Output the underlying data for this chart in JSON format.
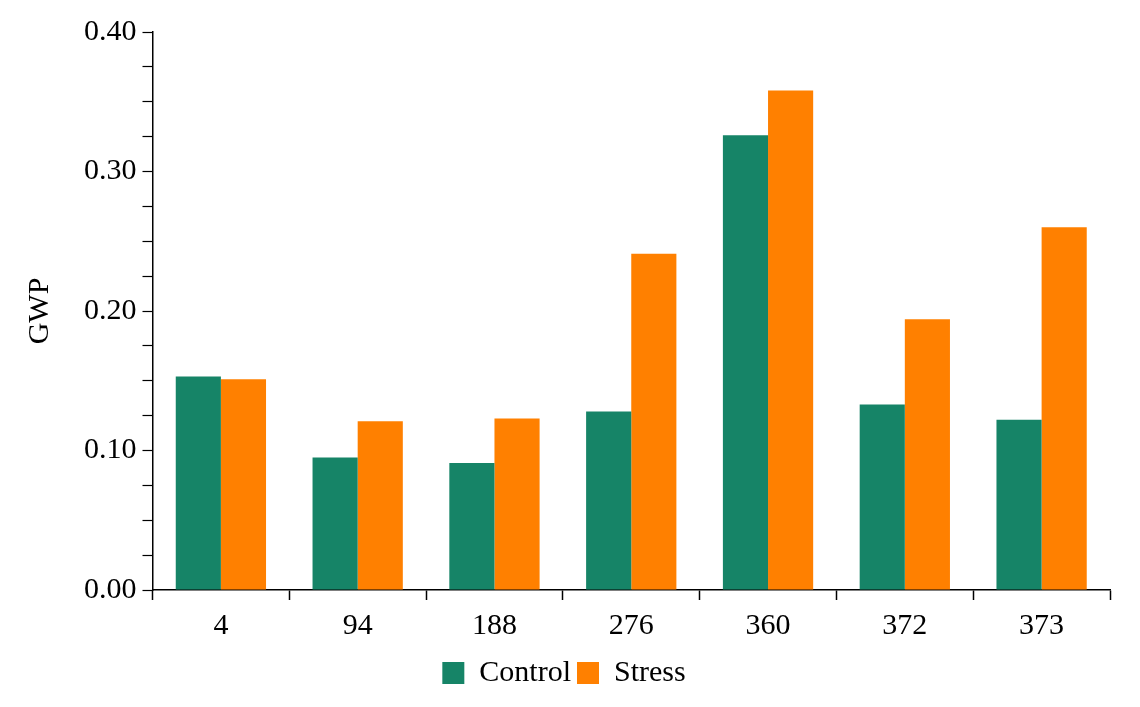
{
  "chart_data": {
    "type": "bar",
    "ylabel": "GWP",
    "categories": [
      "4",
      "94",
      "188",
      "276",
      "360",
      "372",
      "373"
    ],
    "series": [
      {
        "name": "Control",
        "color": "#168467",
        "values": [
          0.153,
          0.095,
          0.091,
          0.128,
          0.326,
          0.133,
          0.122
        ]
      },
      {
        "name": "Stress",
        "color": "#ff8000",
        "values": [
          0.151,
          0.121,
          0.123,
          0.241,
          0.358,
          0.194,
          0.26
        ]
      }
    ],
    "ylim": [
      0,
      0.4
    ],
    "yticks": [
      {
        "value": 0,
        "label": "0.00"
      },
      {
        "value": 0.025,
        "label": null
      },
      {
        "value": 0.05,
        "label": null
      },
      {
        "value": 0.075,
        "label": null
      },
      {
        "value": 0.1,
        "label": "0.10"
      },
      {
        "value": 0.125,
        "label": null
      },
      {
        "value": 0.15,
        "label": null
      },
      {
        "value": 0.175,
        "label": null
      },
      {
        "value": 0.2,
        "label": "0.20"
      },
      {
        "value": 0.225,
        "label": null
      },
      {
        "value": 0.25,
        "label": null
      },
      {
        "value": 0.275,
        "label": null
      },
      {
        "value": 0.3,
        "label": "0.30"
      },
      {
        "value": 0.325,
        "label": null
      },
      {
        "value": 0.35,
        "label": null
      },
      {
        "value": 0.375,
        "label": null
      },
      {
        "value": 0.4,
        "label": "0.40"
      }
    ],
    "grid": false,
    "legend": "bottom"
  }
}
